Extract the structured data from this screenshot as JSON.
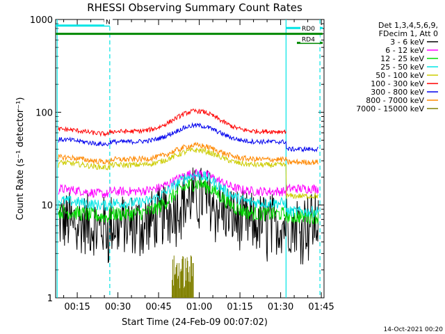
{
  "chart_data": {
    "type": "line",
    "title": "RHESSI Observing Summary Count Rates",
    "xlabel": "Start Time (24-Feb-09 00:07:02)",
    "ylabel": "Count Rate (s⁻¹ detector⁻¹)",
    "y_scale": "log",
    "ylim": [
      1,
      1000
    ],
    "y_ticks": [
      "1",
      "10",
      "100",
      "1000"
    ],
    "xlim_minutes": [
      7.03,
      106
    ],
    "x_ticks": [
      {
        "label": "00:15",
        "minute": 15
      },
      {
        "label": "00:30",
        "minute": 30
      },
      {
        "label": "00:45",
        "minute": 45
      },
      {
        "label": "01:00",
        "minute": 60
      },
      {
        "label": "01:15",
        "minute": 75
      },
      {
        "label": "01:30",
        "minute": 90
      },
      {
        "label": "01:45",
        "minute": 105
      }
    ],
    "legend_header": [
      "Det 1,3,4,5,6,9,",
      "FDecim 1, Att 0"
    ],
    "series": [
      {
        "name": "3 - 6 keV",
        "color": "#000000",
        "base": 6.3,
        "peak": 12.5,
        "late": 6.5,
        "noise": 0.14,
        "spiky": true,
        "to": 104
      },
      {
        "name": "6 - 12 keV",
        "color": "#ff00ff",
        "base": 14.0,
        "peak": 22.0,
        "late": 15.0,
        "noise": 0.05,
        "to": 104
      },
      {
        "name": "12 - 25 keV",
        "color": "#00dd00",
        "base": 8.0,
        "peak": 17.0,
        "late": 7.5,
        "noise": 0.08,
        "to": 104
      },
      {
        "name": "25 - 50 keV",
        "color": "#00e5e5",
        "base": 10.5,
        "peak": 21.0,
        "late": 8.5,
        "noise": 0.06,
        "to": 104
      },
      {
        "name": "50 - 100 keV",
        "color": "#cccc00",
        "base": 27.0,
        "peak": 39.0,
        "late": 12.5,
        "noise": 0.03,
        "to": 104
      },
      {
        "name": "100 - 300 keV",
        "color": "#ff0000",
        "base": 62.0,
        "peak": 103.0,
        "late": 62.0,
        "noise": 0.025,
        "to": 92
      },
      {
        "name": "300 - 800 keV",
        "color": "#0000ee",
        "base": 48.0,
        "peak": 72.0,
        "late": 40.0,
        "noise": 0.025,
        "to": 104
      },
      {
        "name": "800 - 7000 keV",
        "color": "#ff8800",
        "base": 31.0,
        "peak": 44.0,
        "late": 29.0,
        "noise": 0.03,
        "to": 104
      },
      {
        "name": "7000 - 15000 keV",
        "color": "#808000",
        "burst": [
          50,
          58
        ],
        "burst_range": [
          1.2,
          2.9
        ]
      }
    ],
    "flags": [
      {
        "name": "N",
        "color": "#00e5e5",
        "from": 7.03,
        "to": 27,
        "y": 860
      },
      {
        "name": "RD0",
        "color": "#00e5e5",
        "from": 92,
        "to": 105.5,
        "y": 810
      },
      {
        "name": "",
        "color": "#008800",
        "from": 7.03,
        "to": 105.5,
        "y": 700
      },
      {
        "name": "RD4",
        "color": "#008800",
        "from": 96,
        "to": 105.5,
        "y": 560
      }
    ],
    "night_markers_minutes": [
      7.6,
      92
    ],
    "dashed_markers_minutes": [
      27,
      104.5
    ],
    "footer_date": "14-Oct-2021 00:20"
  }
}
